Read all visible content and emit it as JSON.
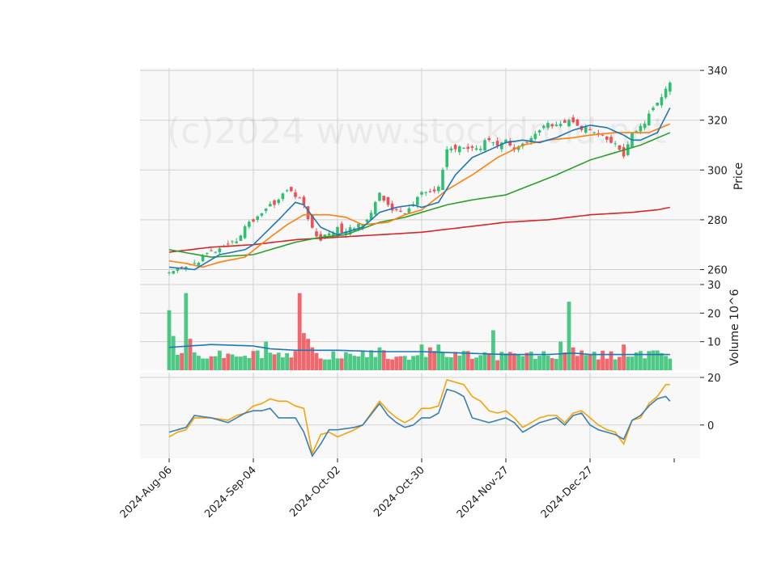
{
  "chart_data": {
    "type": "candlestick",
    "watermark": "(c)2024 www.stockdroid.net",
    "colors": {
      "up": "#2fbf71",
      "down": "#ef4f56",
      "ma_fast": "#1f77b4",
      "ma_mid": "#ff7f0e",
      "ma_slow": "#2ca02c",
      "ma_long": "#d62728",
      "volume_ma": "#1f77b4",
      "osc_a": "#f5a30a",
      "osc_b": "#3b7fb0",
      "panel_bg": "#f8f8f8",
      "grid": "#d0d0d0"
    },
    "x_tick_labels": [
      "2024-Aug-06",
      "2024-Sep-04",
      "2024-Oct-02",
      "2024-Oct-30",
      "2024-Nov-27",
      "2024-Dec-27"
    ],
    "x_tick_index": [
      0,
      20,
      40,
      60,
      80,
      100
    ],
    "price_panel": {
      "ylabel": "Price",
      "ylim": [
        254,
        341
      ],
      "yticks": [
        260,
        280,
        300,
        320,
        340
      ],
      "anchors": [
        [
          0,
          258
        ],
        [
          2,
          259.5
        ],
        [
          4,
          261
        ],
        [
          6,
          262.5
        ],
        [
          8,
          265
        ],
        [
          10,
          267
        ],
        [
          12,
          268
        ],
        [
          14,
          269
        ],
        [
          16,
          272
        ],
        [
          18,
          277
        ],
        [
          20,
          280
        ],
        [
          22,
          283
        ],
        [
          24,
          286
        ],
        [
          26,
          288
        ],
        [
          28,
          292
        ],
        [
          30,
          290
        ],
        [
          32,
          286
        ],
        [
          34,
          276
        ],
        [
          36,
          272
        ],
        [
          38,
          275
        ],
        [
          40,
          276
        ],
        [
          42,
          275
        ],
        [
          44,
          277
        ],
        [
          46,
          279
        ],
        [
          48,
          283
        ],
        [
          50,
          290
        ],
        [
          52,
          286
        ],
        [
          54,
          283
        ],
        [
          56,
          283
        ],
        [
          58,
          286
        ],
        [
          60,
          291
        ],
        [
          62,
          290
        ],
        [
          64,
          293
        ],
        [
          66,
          308
        ],
        [
          68,
          309
        ],
        [
          70,
          310
        ],
        [
          72,
          309
        ],
        [
          74,
          309
        ],
        [
          76,
          313
        ],
        [
          78,
          310
        ],
        [
          80,
          312
        ],
        [
          82,
          309
        ],
        [
          84,
          310
        ],
        [
          86,
          313
        ],
        [
          88,
          316
        ],
        [
          90,
          318
        ],
        [
          92,
          319
        ],
        [
          94,
          319
        ],
        [
          96,
          320
        ],
        [
          98,
          317
        ],
        [
          100,
          316
        ],
        [
          102,
          314
        ],
        [
          104,
          312
        ],
        [
          106,
          310
        ],
        [
          108,
          306
        ],
        [
          110,
          314
        ],
        [
          112,
          317
        ],
        [
          114,
          322
        ],
        [
          116,
          327
        ],
        [
          118,
          332
        ],
        [
          119,
          335
        ]
      ],
      "ma_fast_anchors": [
        [
          0,
          261
        ],
        [
          6,
          260
        ],
        [
          12,
          266
        ],
        [
          18,
          268
        ],
        [
          20,
          270
        ],
        [
          26,
          280
        ],
        [
          30,
          287
        ],
        [
          32,
          286
        ],
        [
          36,
          277
        ],
        [
          40,
          274
        ],
        [
          46,
          277
        ],
        [
          50,
          283
        ],
        [
          54,
          285
        ],
        [
          58,
          286
        ],
        [
          60,
          285
        ],
        [
          64,
          287
        ],
        [
          68,
          298
        ],
        [
          72,
          305
        ],
        [
          76,
          308
        ],
        [
          80,
          311
        ],
        [
          84,
          312
        ],
        [
          88,
          311
        ],
        [
          92,
          313
        ],
        [
          96,
          316
        ],
        [
          100,
          318
        ],
        [
          104,
          317
        ],
        [
          108,
          314
        ],
        [
          110,
          312
        ],
        [
          112,
          312
        ],
        [
          116,
          315
        ],
        [
          119,
          325
        ]
      ],
      "ma_mid_anchors": [
        [
          0,
          263.5
        ],
        [
          4,
          262.5
        ],
        [
          8,
          261
        ],
        [
          12,
          263
        ],
        [
          18,
          265
        ],
        [
          24,
          273
        ],
        [
          28,
          278
        ],
        [
          32,
          282
        ],
        [
          38,
          282
        ],
        [
          42,
          281
        ],
        [
          46,
          278
        ],
        [
          52,
          279
        ],
        [
          56,
          282
        ],
        [
          60,
          284
        ],
        [
          66,
          292
        ],
        [
          72,
          298
        ],
        [
          78,
          305
        ],
        [
          84,
          310
        ],
        [
          90,
          312
        ],
        [
          96,
          313
        ],
        [
          100,
          314
        ],
        [
          106,
          315
        ],
        [
          110,
          315
        ],
        [
          114,
          315
        ],
        [
          119,
          318.5
        ]
      ],
      "ma_slow_anchors": [
        [
          0,
          268
        ],
        [
          10,
          265
        ],
        [
          20,
          266
        ],
        [
          24,
          268
        ],
        [
          30,
          271
        ],
        [
          36,
          273
        ],
        [
          42,
          274
        ],
        [
          50,
          279
        ],
        [
          56,
          281
        ],
        [
          60,
          283
        ],
        [
          66,
          286
        ],
        [
          72,
          288
        ],
        [
          80,
          290
        ],
        [
          86,
          294
        ],
        [
          92,
          298
        ],
        [
          100,
          304
        ],
        [
          106,
          307
        ],
        [
          112,
          310
        ],
        [
          119,
          315
        ]
      ],
      "ma_long_anchors": [
        [
          0,
          267
        ],
        [
          10,
          269
        ],
        [
          20,
          270
        ],
        [
          30,
          272
        ],
        [
          40,
          273
        ],
        [
          50,
          274
        ],
        [
          60,
          275
        ],
        [
          70,
          277
        ],
        [
          80,
          279
        ],
        [
          90,
          280
        ],
        [
          100,
          282
        ],
        [
          110,
          283
        ],
        [
          116,
          284
        ],
        [
          119,
          285
        ]
      ]
    },
    "volume_panel": {
      "ylabel": "Volume  10^6",
      "ylim": [
        0,
        30
      ],
      "yticks": [
        10,
        20,
        30
      ],
      "overrides": [
        [
          0,
          21
        ],
        [
          1,
          12
        ],
        [
          3,
          6
        ],
        [
          4,
          27
        ],
        [
          5,
          11
        ],
        [
          23,
          10
        ],
        [
          31,
          27
        ],
        [
          32,
          13
        ],
        [
          33,
          11
        ],
        [
          34,
          8
        ],
        [
          50,
          8
        ],
        [
          51,
          7
        ],
        [
          56,
          5
        ],
        [
          60,
          9
        ],
        [
          62,
          8
        ],
        [
          64,
          9
        ],
        [
          77,
          14
        ],
        [
          93,
          10
        ],
        [
          95,
          24
        ],
        [
          96,
          8
        ],
        [
          108,
          9
        ],
        [
          117,
          6
        ],
        [
          118,
          5
        ]
      ],
      "ma_anchors": [
        [
          0,
          8
        ],
        [
          10,
          9
        ],
        [
          20,
          8.5
        ],
        [
          24,
          7.5
        ],
        [
          30,
          7
        ],
        [
          40,
          7
        ],
        [
          50,
          6.5
        ],
        [
          60,
          6.5
        ],
        [
          70,
          6
        ],
        [
          80,
          5.5
        ],
        [
          90,
          5.5
        ],
        [
          96,
          6
        ],
        [
          100,
          5.5
        ],
        [
          110,
          5.5
        ],
        [
          119,
          5.5
        ]
      ]
    },
    "osc_panel": {
      "ylim": [
        -14,
        22
      ],
      "yticks": [
        0,
        20
      ],
      "a_anchors": [
        [
          0,
          -5
        ],
        [
          2,
          -3
        ],
        [
          4,
          -2
        ],
        [
          6,
          3
        ],
        [
          10,
          3
        ],
        [
          14,
          2
        ],
        [
          16,
          4
        ],
        [
          18,
          5
        ],
        [
          20,
          8
        ],
        [
          22,
          9
        ],
        [
          24,
          11
        ],
        [
          26,
          10
        ],
        [
          28,
          10
        ],
        [
          30,
          8
        ],
        [
          32,
          7
        ],
        [
          34,
          -12
        ],
        [
          36,
          -4
        ],
        [
          38,
          -3
        ],
        [
          40,
          -5
        ],
        [
          44,
          -2
        ],
        [
          46,
          0
        ],
        [
          50,
          10
        ],
        [
          52,
          6
        ],
        [
          54,
          3
        ],
        [
          56,
          1
        ],
        [
          58,
          3
        ],
        [
          60,
          7
        ],
        [
          62,
          7
        ],
        [
          64,
          8
        ],
        [
          66,
          19
        ],
        [
          68,
          18
        ],
        [
          70,
          17
        ],
        [
          72,
          12
        ],
        [
          74,
          10
        ],
        [
          76,
          6
        ],
        [
          78,
          5
        ],
        [
          80,
          6
        ],
        [
          82,
          3
        ],
        [
          84,
          -1
        ],
        [
          86,
          1
        ],
        [
          88,
          3
        ],
        [
          90,
          4
        ],
        [
          92,
          4
        ],
        [
          94,
          1
        ],
        [
          96,
          5
        ],
        [
          98,
          6
        ],
        [
          100,
          3
        ],
        [
          102,
          0
        ],
        [
          104,
          -2
        ],
        [
          106,
          -3
        ],
        [
          108,
          -8
        ],
        [
          110,
          2
        ],
        [
          112,
          3
        ],
        [
          114,
          9
        ],
        [
          116,
          12
        ],
        [
          118,
          17
        ],
        [
          119,
          17
        ]
      ],
      "b_anchors": [
        [
          0,
          -3
        ],
        [
          2,
          -2
        ],
        [
          4,
          -1
        ],
        [
          6,
          4
        ],
        [
          10,
          3
        ],
        [
          14,
          1
        ],
        [
          16,
          3
        ],
        [
          18,
          5
        ],
        [
          20,
          6
        ],
        [
          22,
          6
        ],
        [
          24,
          7
        ],
        [
          26,
          3
        ],
        [
          28,
          3
        ],
        [
          30,
          3
        ],
        [
          32,
          -3
        ],
        [
          34,
          -13
        ],
        [
          36,
          -8
        ],
        [
          38,
          -2
        ],
        [
          40,
          -2
        ],
        [
          44,
          -1
        ],
        [
          46,
          0
        ],
        [
          50,
          9
        ],
        [
          52,
          4
        ],
        [
          54,
          1
        ],
        [
          56,
          -1
        ],
        [
          58,
          0
        ],
        [
          60,
          3
        ],
        [
          62,
          3
        ],
        [
          64,
          5
        ],
        [
          66,
          15
        ],
        [
          68,
          14
        ],
        [
          70,
          12
        ],
        [
          72,
          3
        ],
        [
          74,
          2
        ],
        [
          76,
          1
        ],
        [
          78,
          2
        ],
        [
          80,
          3
        ],
        [
          82,
          1
        ],
        [
          84,
          -3
        ],
        [
          86,
          -1
        ],
        [
          88,
          1
        ],
        [
          90,
          2
        ],
        [
          92,
          3
        ],
        [
          94,
          0
        ],
        [
          96,
          4
        ],
        [
          98,
          5
        ],
        [
          100,
          0
        ],
        [
          102,
          -2
        ],
        [
          104,
          -3
        ],
        [
          106,
          -4
        ],
        [
          108,
          -6
        ],
        [
          110,
          2
        ],
        [
          112,
          4
        ],
        [
          114,
          8
        ],
        [
          116,
          11
        ],
        [
          118,
          12
        ],
        [
          119,
          10
        ]
      ]
    }
  }
}
